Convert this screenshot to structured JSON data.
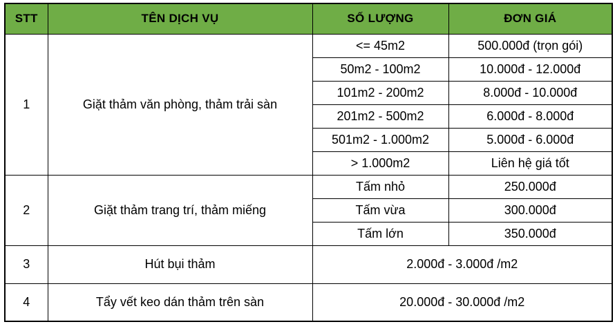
{
  "table": {
    "headers": [
      "STT",
      "TÊN DỊCH VỤ",
      "SỐ LƯỢNG",
      "ĐƠN GIÁ"
    ],
    "colors": {
      "header_bg": "#6FAD46",
      "stt_column_bg": "#F2F2F2",
      "border": "#000000",
      "row_bg": "#FFFFFF"
    },
    "sections": [
      {
        "stt": "1",
        "service": "Giặt thảm văn phòng, thảm trải sàn",
        "rows": [
          {
            "quantity": "<= 45m2",
            "price": "500.000đ (trọn gói)"
          },
          {
            "quantity": "50m2 - 100m2",
            "price": "10.000đ - 12.000đ"
          },
          {
            "quantity": "101m2 - 200m2",
            "price": "8.000đ - 10.000đ"
          },
          {
            "quantity": "201m2 - 500m2",
            "price": "6.000đ - 8.000đ"
          },
          {
            "quantity": "501m2 - 1.000m2",
            "price": "5.000đ - 6.000đ"
          },
          {
            "quantity": "> 1.000m2",
            "price": "Liên hệ giá tốt"
          }
        ]
      },
      {
        "stt": "2",
        "service": "Giặt thảm trang trí, thảm miếng",
        "rows": [
          {
            "quantity": "Tấm nhỏ",
            "price": "250.000đ"
          },
          {
            "quantity": "Tấm vừa",
            "price": "300.000đ"
          },
          {
            "quantity": "Tấm lớn",
            "price": "350.000đ"
          }
        ]
      },
      {
        "stt": "3",
        "service": "Hút bụi thảm",
        "merged_price": "2.000đ - 3.000đ /m2"
      },
      {
        "stt": "4",
        "service": "Tẩy vết keo dán thảm trên sàn",
        "merged_price": "20.000đ - 30.000đ /m2"
      }
    ]
  }
}
